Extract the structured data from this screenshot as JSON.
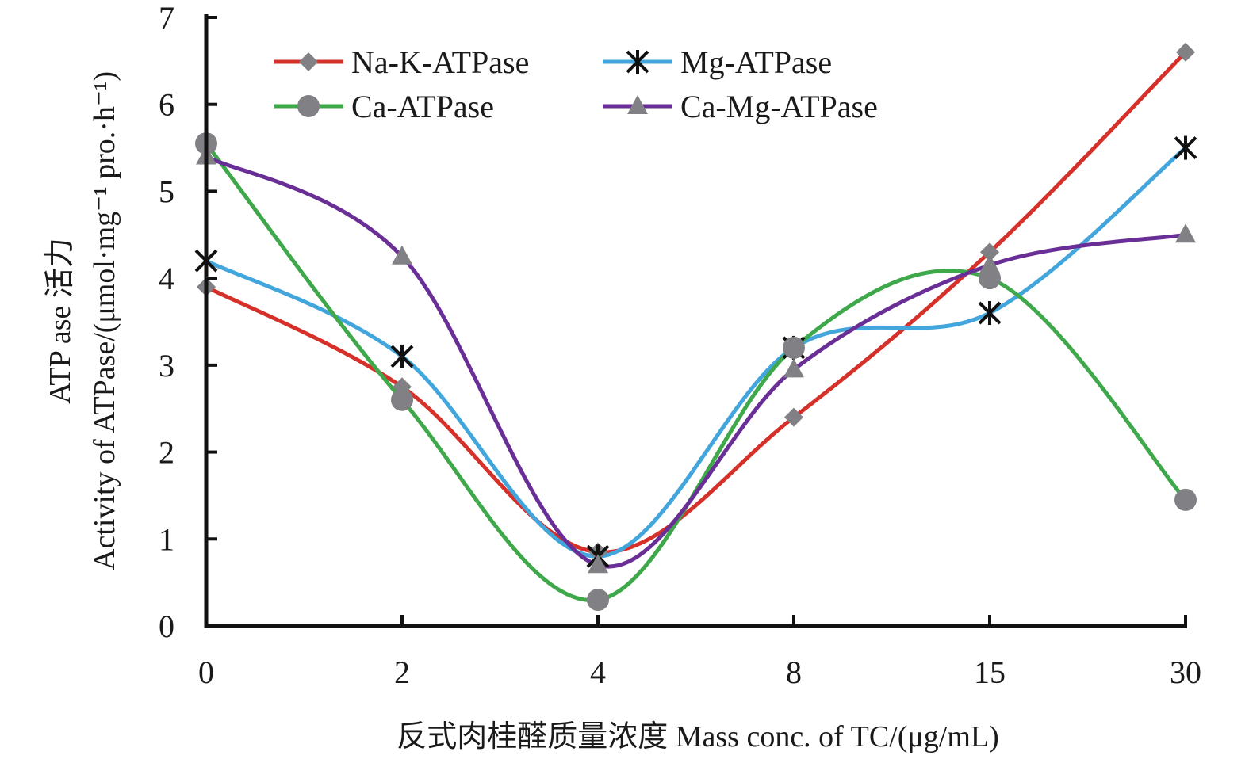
{
  "chart_data": {
    "type": "line",
    "categories": [
      "0",
      "2",
      "4",
      "8",
      "15",
      "30"
    ],
    "xlabel": "反式肉桂醛质量浓度 Mass conc. of TC/(μg/mL)",
    "ylabel_line1": "ATP ase 活力",
    "ylabel_line2": "Activity of ATPase/(μmol·mg⁻¹ pro.·h⁻¹)",
    "ylim": [
      0,
      7
    ],
    "yticks": [
      "0",
      "1",
      "2",
      "3",
      "4",
      "5",
      "6",
      "7"
    ],
    "series": [
      {
        "name": "Na-K-ATPase",
        "color": "#d6302a",
        "marker": "diamond",
        "values": [
          3.9,
          2.75,
          0.85,
          2.4,
          4.3,
          6.6
        ]
      },
      {
        "name": "Mg-ATPase",
        "color": "#42a6dc",
        "marker": "star",
        "values": [
          4.2,
          3.1,
          0.8,
          3.2,
          3.6,
          5.5
        ]
      },
      {
        "name": "Ca-ATPase",
        "color": "#3ea84a",
        "marker": "circle",
        "values": [
          5.55,
          2.6,
          0.3,
          3.2,
          4.0,
          1.45
        ]
      },
      {
        "name": "Ca-Mg-ATPase",
        "color": "#6a2f96",
        "marker": "triangle",
        "values": [
          5.4,
          4.25,
          0.7,
          2.95,
          4.15,
          4.5
        ]
      }
    ]
  }
}
